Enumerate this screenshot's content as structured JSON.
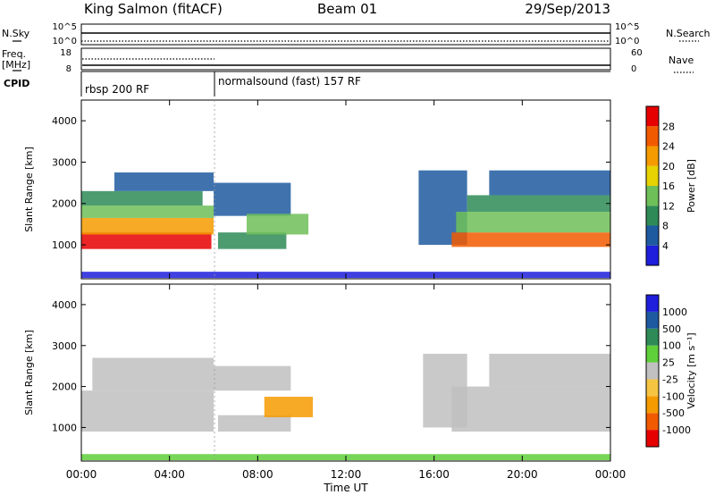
{
  "header": {
    "station": "King Salmon (fitACF)",
    "beam": "Beam 01",
    "date": "29/Sep/2013"
  },
  "noise_panel": {
    "left_label": "N.Sky",
    "right_label": "N.Search",
    "left_ticks": [
      "10^5",
      "10^0"
    ],
    "right_ticks": [
      "10^5",
      "10^0"
    ]
  },
  "freq_panel": {
    "left_label_1": "Freq.",
    "left_label_2": "[MHz]",
    "right_label": "Nave",
    "left_ticks": [
      "18",
      "8"
    ],
    "right_ticks": [
      "60",
      "0"
    ]
  },
  "cpid_panel": {
    "label": "CPID",
    "modes": [
      {
        "name": "rbsp 200 RF",
        "start_hour": 0,
        "end_hour": 6
      },
      {
        "name": "normalsound (fast) 157 RF",
        "start_hour": 6,
        "end_hour": 24
      }
    ]
  },
  "x_axis": {
    "label": "Time UT",
    "range_hours": [
      0,
      24
    ],
    "ticks": [
      {
        "h": 0,
        "label": "00:00"
      },
      {
        "h": 4,
        "label": "04:00"
      },
      {
        "h": 8,
        "label": "08:00"
      },
      {
        "h": 12,
        "label": "12:00"
      },
      {
        "h": 16,
        "label": "16:00"
      },
      {
        "h": 20,
        "label": "20:00"
      },
      {
        "h": 24,
        "label": "00:00"
      }
    ]
  },
  "chart_data": [
    {
      "type": "heatmap",
      "panel": "power",
      "ylabel": "Slant Range [km]",
      "ylim": [
        180,
        4500
      ],
      "yticks": [
        1000,
        2000,
        3000,
        4000
      ],
      "colorbar": {
        "label": "Power [dB]",
        "levels": [
          {
            "color": "#1e1edc",
            "label": "4"
          },
          {
            "color": "#1e5aa0",
            "label": "8"
          },
          {
            "color": "#2e8b57",
            "label": "12"
          },
          {
            "color": "#6fbf58",
            "label": "16"
          },
          {
            "color": "#e6d200",
            "label": "20"
          },
          {
            "color": "#f59b00",
            "label": "24"
          },
          {
            "color": "#f25a00",
            "label": "28"
          },
          {
            "color": "#e60000",
            "label": ""
          }
        ]
      },
      "bands": [
        {
          "t0": 0.0,
          "t1": 5.9,
          "r0": 900,
          "r1": 1300,
          "level": 7
        },
        {
          "t0": 0.0,
          "t1": 6.0,
          "r0": 1250,
          "r1": 1650,
          "level": 5
        },
        {
          "t0": 0.0,
          "t1": 6.0,
          "r0": 1650,
          "r1": 1950,
          "level": 3
        },
        {
          "t0": 0.0,
          "t1": 5.5,
          "r0": 1950,
          "r1": 2300,
          "level": 2
        },
        {
          "t0": 1.5,
          "t1": 6.0,
          "r0": 2300,
          "r1": 2750,
          "level": 1
        },
        {
          "t0": 6.0,
          "t1": 9.5,
          "r0": 1700,
          "r1": 2500,
          "level": 1
        },
        {
          "t0": 6.2,
          "t1": 9.3,
          "r0": 900,
          "r1": 1300,
          "level": 2
        },
        {
          "t0": 7.5,
          "t1": 10.3,
          "r0": 1250,
          "r1": 1750,
          "level": 3
        },
        {
          "t0": 15.3,
          "t1": 17.5,
          "r0": 1000,
          "r1": 2800,
          "level": 1
        },
        {
          "t0": 16.8,
          "t1": 24.0,
          "r0": 950,
          "r1": 1300,
          "level": 6
        },
        {
          "t0": 17.0,
          "t1": 24.0,
          "r0": 1300,
          "r1": 1800,
          "level": 3
        },
        {
          "t0": 17.5,
          "t1": 24.0,
          "r0": 1800,
          "r1": 2200,
          "level": 2
        },
        {
          "t0": 18.5,
          "t1": 24.0,
          "r0": 2200,
          "r1": 2800,
          "level": 1
        },
        {
          "t0": 0.0,
          "t1": 24.0,
          "r0": 200,
          "r1": 350,
          "level": 0
        }
      ]
    },
    {
      "type": "heatmap",
      "panel": "velocity",
      "ylabel": "Slant Range [km]",
      "ylim": [
        180,
        4500
      ],
      "yticks": [
        1000,
        2000,
        3000,
        4000
      ],
      "colorbar": {
        "label": "Velocity [m s⁻¹]",
        "levels": [
          {
            "color": "#e60000",
            "label": "-1000"
          },
          {
            "color": "#f25a00",
            "label": "-500"
          },
          {
            "color": "#f59b00",
            "label": "-100"
          },
          {
            "color": "#f5c542",
            "label": "-25"
          },
          {
            "color": "#c0c0c0",
            "label": "25"
          },
          {
            "color": "#5fcf3a",
            "label": "100"
          },
          {
            "color": "#2e8b57",
            "label": "500"
          },
          {
            "color": "#1e5aa0",
            "label": "1000"
          },
          {
            "color": "#1e1edc",
            "label": ""
          }
        ]
      },
      "bands": [
        {
          "t0": 0.0,
          "t1": 6.0,
          "r0": 900,
          "r1": 1900,
          "level": 4
        },
        {
          "t0": 0.5,
          "t1": 6.0,
          "r0": 1900,
          "r1": 2700,
          "level": 4
        },
        {
          "t0": 6.2,
          "t1": 9.5,
          "r0": 900,
          "r1": 1300,
          "level": 4
        },
        {
          "t0": 6.0,
          "t1": 9.5,
          "r0": 1900,
          "r1": 2500,
          "level": 4
        },
        {
          "t0": 8.3,
          "t1": 10.5,
          "r0": 1250,
          "r1": 1750,
          "level": 2
        },
        {
          "t0": 15.5,
          "t1": 17.5,
          "r0": 1000,
          "r1": 2800,
          "level": 4
        },
        {
          "t0": 16.8,
          "t1": 24.0,
          "r0": 900,
          "r1": 2000,
          "level": 4
        },
        {
          "t0": 18.5,
          "t1": 24.0,
          "r0": 2000,
          "r1": 2800,
          "level": 4
        },
        {
          "t0": 0.0,
          "t1": 24.0,
          "r0": 200,
          "r1": 350,
          "level": 5
        }
      ]
    }
  ]
}
